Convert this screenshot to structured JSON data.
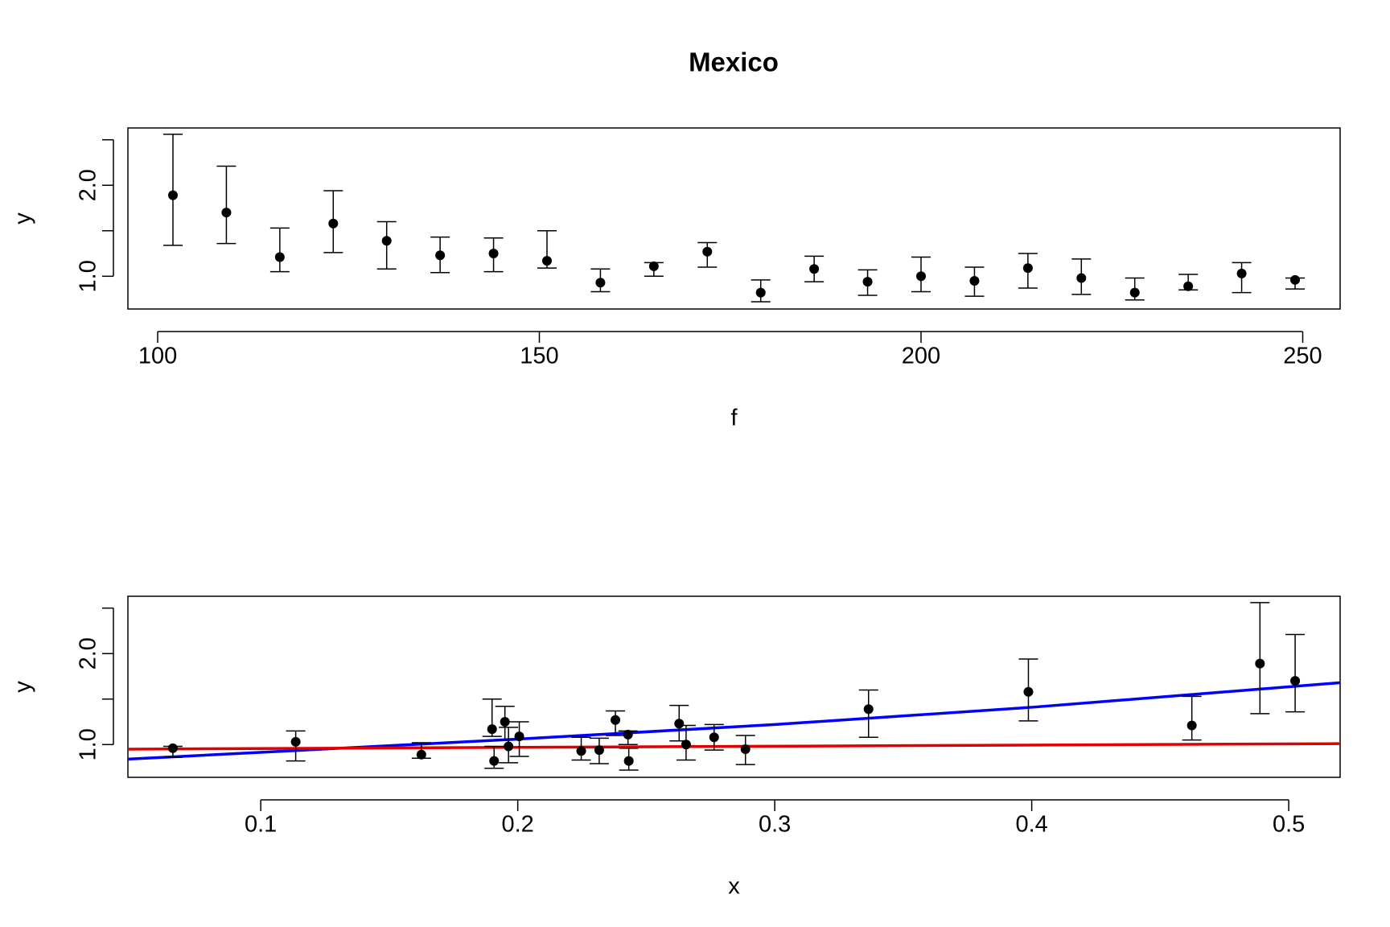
{
  "chart_data": [
    {
      "type": "scatter",
      "title": "Mexico",
      "xlabel": "f",
      "ylabel": "y",
      "color": "#000000",
      "x": [
        102,
        109,
        116,
        123,
        130,
        137,
        144,
        151,
        158,
        165,
        172,
        179,
        186,
        193,
        200,
        207,
        214,
        221,
        228,
        235,
        242,
        249
      ],
      "values": [
        1.89,
        1.7,
        1.21,
        1.58,
        1.39,
        1.23,
        1.25,
        1.17,
        0.93,
        1.11,
        1.27,
        0.82,
        1.08,
        0.94,
        1.0,
        0.95,
        1.09,
        0.98,
        0.82,
        0.89,
        1.03,
        0.96
      ],
      "lower": [
        1.34,
        1.36,
        1.05,
        1.26,
        1.08,
        1.04,
        1.05,
        1.09,
        0.83,
        1.0,
        1.1,
        0.72,
        0.94,
        0.79,
        0.83,
        0.78,
        0.87,
        0.8,
        0.74,
        0.85,
        0.82,
        0.86
      ],
      "upper": [
        2.56,
        2.21,
        1.53,
        1.94,
        1.6,
        1.43,
        1.42,
        1.5,
        1.08,
        1.15,
        1.37,
        0.96,
        1.22,
        1.07,
        1.21,
        1.1,
        1.25,
        1.19,
        0.98,
        1.02,
        1.15,
        0.98
      ],
      "xlim": [
        96.1,
        254.9
      ],
      "ylim": [
        0.64,
        2.63
      ],
      "xticks": [
        100,
        150,
        200,
        250
      ],
      "yticks": [
        {
          "value": 1,
          "label": "1.0"
        },
        {
          "value": 1.5,
          "label": null
        },
        {
          "value": 2,
          "label": "2.0"
        },
        {
          "value": 2.5,
          "label": null
        }
      ]
    },
    {
      "type": "scatter",
      "xlabel": "x",
      "ylabel": "y",
      "color": "#000000",
      "x": [
        0.0658,
        0.1136,
        0.1625,
        0.19,
        0.1908,
        0.195,
        0.1964,
        0.2006,
        0.2247,
        0.2317,
        0.238,
        0.2429,
        0.2432,
        0.2628,
        0.2655,
        0.2764,
        0.2886,
        0.3365,
        0.3987,
        0.4623,
        0.4888,
        0.5025
      ],
      "values": [
        0.96,
        1.03,
        0.89,
        1.17,
        0.82,
        1.25,
        0.98,
        1.09,
        0.93,
        0.94,
        1.27,
        1.11,
        0.82,
        1.23,
        1.0,
        1.08,
        0.95,
        1.39,
        1.58,
        1.21,
        1.89,
        1.7
      ],
      "lower": [
        0.86,
        0.82,
        0.85,
        1.09,
        0.74,
        1.05,
        0.8,
        0.87,
        0.83,
        0.79,
        1.1,
        1.0,
        0.72,
        1.04,
        0.83,
        0.94,
        0.78,
        1.08,
        1.26,
        1.05,
        1.34,
        1.36
      ],
      "upper": [
        0.98,
        1.15,
        1.02,
        1.5,
        0.98,
        1.42,
        1.19,
        1.25,
        1.08,
        1.07,
        1.37,
        1.15,
        0.96,
        1.43,
        1.21,
        1.22,
        1.1,
        1.6,
        1.94,
        1.53,
        2.56,
        2.21
      ],
      "lines": [
        {
          "color": "#0000ff",
          "x": [
            0.0483,
            0.2,
            0.3,
            0.4,
            0.52
          ],
          "values": [
            0.84,
            1.06,
            1.22,
            1.41,
            1.68
          ]
        },
        {
          "color": "#e00000",
          "x": [
            0.0483,
            0.52
          ],
          "values": [
            0.95,
            1.01
          ]
        }
      ],
      "xlim": [
        0.0483,
        0.52
      ],
      "ylim": [
        0.64,
        2.63
      ],
      "xticks": [
        0.1,
        0.2,
        0.3,
        0.4,
        0.5
      ],
      "yticks": [
        {
          "value": 1,
          "label": "1.0"
        },
        {
          "value": 1.5,
          "label": null
        },
        {
          "value": 2,
          "label": "2.0"
        },
        {
          "value": 2.5,
          "label": null
        }
      ]
    }
  ]
}
